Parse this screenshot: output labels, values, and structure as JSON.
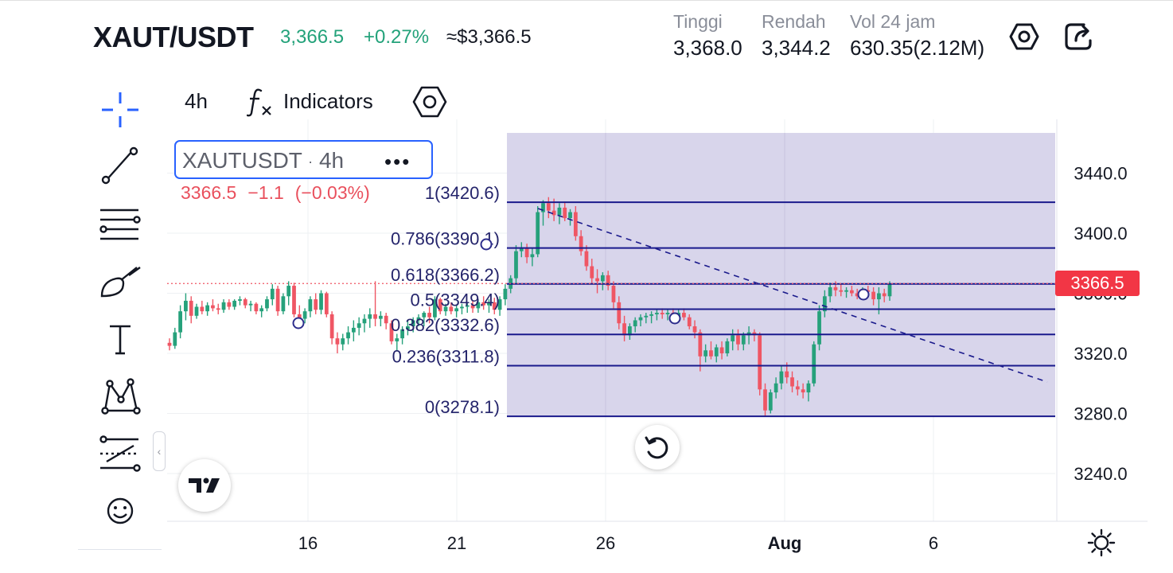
{
  "header": {
    "symbol": "XAUT/USDT",
    "price": "3,366.5",
    "change": "+0.27%",
    "usd_price": "≈$3,366.5",
    "stats": [
      {
        "label": "Tinggi",
        "value": "3,368.0"
      },
      {
        "label": "Rendah",
        "value": "3,344.2"
      },
      {
        "label": "Vol 24 jam",
        "value": "630.35(2.12M)"
      }
    ],
    "settings_icon": "settings-hexagon-icon",
    "share_icon": "share-icon"
  },
  "toolbar": {
    "interval": "4h",
    "indicators_label": "Indicators",
    "indicators_icon": "fx-icon",
    "settings_icon": "hexagon-settings-icon"
  },
  "left_tools": [
    "crosshair-icon",
    "trend-line-icon",
    "fib-lines-icon",
    "brush-icon",
    "text-icon",
    "pattern-icon",
    "measure-icon",
    "emoji-icon"
  ],
  "legend": {
    "name": "XAUTUSDT",
    "sep": "·",
    "interval": "4h",
    "more": "•••",
    "close": "3366.5",
    "change": "−1.1",
    "change_pct": "(−0.03%)"
  },
  "colors": {
    "up": "#26a17b",
    "down": "#ef5664",
    "fib_line": "#1a1a8c",
    "fib_fill": "#d6d3ea",
    "price_tag": "#f23645",
    "accent": "#2962ff"
  },
  "chart_data": {
    "type": "candlestick",
    "symbol": "XAUTUSDT",
    "interval": "4h",
    "x_ticks": [
      "16",
      "21",
      "26",
      "Aug",
      "6"
    ],
    "y_ticks": [
      "3440.0",
      "3400.0",
      "3360.0",
      "3320.0",
      "3280.0",
      "3240.0"
    ],
    "ylim": [
      3226,
      3463
    ],
    "last_price": "3366.5",
    "fib_retracement": [
      {
        "level": "1",
        "price": 3420.6,
        "label": "1(3420.6)"
      },
      {
        "level": "0.786",
        "price": 3390.1,
        "label": "0.786(3390.1)"
      },
      {
        "level": "0.618",
        "price": 3366.2,
        "label": "0.618(3366.2)"
      },
      {
        "level": "0.5",
        "price": 3349.4,
        "label": "0.5(3349.4)"
      },
      {
        "level": "0.382",
        "price": 3332.6,
        "label": "0.382(3332.6)"
      },
      {
        "level": "0.236",
        "price": 3311.8,
        "label": "0.236(3311.8)"
      },
      {
        "level": "0",
        "price": 3278.1,
        "label": "0(3278.1)"
      }
    ],
    "candles": [
      [
        3327,
        3330,
        3322,
        3325
      ],
      [
        3325,
        3337,
        3323,
        3334
      ],
      [
        3334,
        3352,
        3330,
        3348
      ],
      [
        3348,
        3360,
        3342,
        3355
      ],
      [
        3355,
        3358,
        3340,
        3345
      ],
      [
        3345,
        3353,
        3343,
        3351
      ],
      [
        3351,
        3355,
        3346,
        3348
      ],
      [
        3348,
        3354,
        3345,
        3352
      ],
      [
        3352,
        3356,
        3348,
        3350
      ],
      [
        3350,
        3353,
        3346,
        3349
      ],
      [
        3349,
        3356,
        3347,
        3354
      ],
      [
        3354,
        3356,
        3349,
        3351
      ],
      [
        3351,
        3356,
        3349,
        3355
      ],
      [
        3355,
        3358,
        3352,
        3356
      ],
      [
        3356,
        3357,
        3350,
        3352
      ],
      [
        3352,
        3355,
        3348,
        3353
      ],
      [
        3353,
        3354,
        3346,
        3348
      ],
      [
        3348,
        3352,
        3344,
        3350
      ],
      [
        3350,
        3358,
        3348,
        3356
      ],
      [
        3356,
        3366,
        3352,
        3363
      ],
      [
        3363,
        3365,
        3345,
        3348
      ],
      [
        3348,
        3360,
        3346,
        3358
      ],
      [
        3358,
        3368,
        3352,
        3365
      ],
      [
        3365,
        3367,
        3344,
        3346
      ],
      [
        3346,
        3352,
        3340,
        3343
      ],
      [
        3343,
        3350,
        3340,
        3348
      ],
      [
        3348,
        3358,
        3344,
        3356
      ],
      [
        3356,
        3360,
        3346,
        3349
      ],
      [
        3349,
        3362,
        3346,
        3360
      ],
      [
        3360,
        3361,
        3344,
        3346
      ],
      [
        3346,
        3348,
        3326,
        3330
      ],
      [
        3330,
        3334,
        3320,
        3326
      ],
      [
        3326,
        3333,
        3322,
        3330
      ],
      [
        3330,
        3338,
        3326,
        3334
      ],
      [
        3334,
        3342,
        3328,
        3337
      ],
      [
        3337,
        3344,
        3332,
        3340
      ],
      [
        3340,
        3346,
        3334,
        3343
      ],
      [
        3343,
        3350,
        3337,
        3346
      ],
      [
        3346,
        3368,
        3338,
        3343
      ],
      [
        3343,
        3348,
        3338,
        3345
      ],
      [
        3345,
        3347,
        3336,
        3340
      ],
      [
        3340,
        3342,
        3326,
        3328
      ],
      [
        3328,
        3333,
        3322,
        3330
      ],
      [
        3330,
        3338,
        3326,
        3336
      ],
      [
        3336,
        3342,
        3332,
        3338
      ],
      [
        3338,
        3344,
        3334,
        3342
      ],
      [
        3342,
        3346,
        3338,
        3344
      ],
      [
        3344,
        3348,
        3338,
        3347
      ],
      [
        3347,
        3351,
        3340,
        3344
      ],
      [
        3344,
        3358,
        3342,
        3356
      ],
      [
        3356,
        3357,
        3346,
        3348
      ],
      [
        3348,
        3353,
        3345,
        3351
      ],
      [
        3351,
        3354,
        3346,
        3348
      ],
      [
        3348,
        3352,
        3344,
        3350
      ],
      [
        3350,
        3353,
        3346,
        3351
      ],
      [
        3351,
        3354,
        3347,
        3352
      ],
      [
        3352,
        3355,
        3347,
        3350
      ],
      [
        3350,
        3356,
        3347,
        3354
      ],
      [
        3354,
        3358,
        3349,
        3352
      ],
      [
        3352,
        3356,
        3347,
        3354
      ],
      [
        3354,
        3357,
        3346,
        3349
      ],
      [
        3349,
        3358,
        3345,
        3356
      ],
      [
        3356,
        3366,
        3352,
        3363
      ],
      [
        3363,
        3372,
        3360,
        3370
      ],
      [
        3370,
        3392,
        3366,
        3388
      ],
      [
        3388,
        3394,
        3384,
        3390
      ],
      [
        3390,
        3393,
        3380,
        3384
      ],
      [
        3384,
        3390,
        3378,
        3386
      ],
      [
        3386,
        3418,
        3384,
        3414
      ],
      [
        3414,
        3422,
        3405,
        3420
      ],
      [
        3420,
        3424,
        3410,
        3415
      ],
      [
        3415,
        3423,
        3408,
        3412
      ],
      [
        3412,
        3420,
        3406,
        3417
      ],
      [
        3417,
        3421,
        3408,
        3410
      ],
      [
        3410,
        3416,
        3405,
        3414
      ],
      [
        3414,
        3418,
        3395,
        3398
      ],
      [
        3398,
        3402,
        3385,
        3388
      ],
      [
        3388,
        3392,
        3375,
        3378
      ],
      [
        3378,
        3383,
        3366,
        3370
      ],
      [
        3370,
        3376,
        3360,
        3368
      ],
      [
        3368,
        3374,
        3362,
        3372
      ],
      [
        3372,
        3375,
        3362,
        3365
      ],
      [
        3365,
        3368,
        3350,
        3354
      ],
      [
        3354,
        3358,
        3336,
        3340
      ],
      [
        3340,
        3345,
        3328,
        3332
      ],
      [
        3332,
        3340,
        3329,
        3338
      ],
      [
        3338,
        3344,
        3334,
        3342
      ],
      [
        3342,
        3346,
        3338,
        3344
      ],
      [
        3344,
        3347,
        3340,
        3345
      ],
      [
        3345,
        3348,
        3340,
        3346
      ],
      [
        3346,
        3349,
        3342,
        3347
      ],
      [
        3347,
        3350,
        3343,
        3346
      ],
      [
        3346,
        3349,
        3342,
        3347
      ],
      [
        3347,
        3350,
        3342,
        3345
      ],
      [
        3345,
        3349,
        3341,
        3347
      ],
      [
        3347,
        3350,
        3342,
        3344
      ],
      [
        3344,
        3346,
        3336,
        3338
      ],
      [
        3338,
        3342,
        3330,
        3334
      ],
      [
        3334,
        3336,
        3308,
        3318
      ],
      [
        3318,
        3326,
        3314,
        3322
      ],
      [
        3322,
        3328,
        3316,
        3318
      ],
      [
        3318,
        3326,
        3314,
        3324
      ],
      [
        3324,
        3328,
        3316,
        3320
      ],
      [
        3320,
        3330,
        3318,
        3328
      ],
      [
        3328,
        3336,
        3322,
        3332
      ],
      [
        3332,
        3336,
        3322,
        3326
      ],
      [
        3326,
        3334,
        3322,
        3332
      ],
      [
        3332,
        3338,
        3326,
        3334
      ],
      [
        3334,
        3336,
        3328,
        3332
      ],
      [
        3332,
        3334,
        3292,
        3296
      ],
      [
        3296,
        3300,
        3278,
        3282
      ],
      [
        3282,
        3296,
        3280,
        3294
      ],
      [
        3294,
        3304,
        3290,
        3300
      ],
      [
        3300,
        3312,
        3296,
        3308
      ],
      [
        3308,
        3314,
        3300,
        3304
      ],
      [
        3304,
        3308,
        3294,
        3298
      ],
      [
        3298,
        3302,
        3292,
        3296
      ],
      [
        3296,
        3300,
        3290,
        3294
      ],
      [
        3294,
        3302,
        3288,
        3300
      ],
      [
        3300,
        3328,
        3298,
        3326
      ],
      [
        3326,
        3352,
        3322,
        3348
      ],
      [
        3348,
        3362,
        3344,
        3358
      ],
      [
        3358,
        3367,
        3354,
        3364
      ],
      [
        3364,
        3368,
        3358,
        3362
      ],
      [
        3362,
        3366,
        3358,
        3361
      ],
      [
        3361,
        3364,
        3357,
        3362
      ],
      [
        3362,
        3365,
        3358,
        3360
      ],
      [
        3360,
        3363,
        3356,
        3358
      ],
      [
        3358,
        3364,
        3356,
        3362
      ],
      [
        3362,
        3365,
        3358,
        3361
      ],
      [
        3361,
        3364,
        3352,
        3356
      ],
      [
        3356,
        3364,
        3346,
        3360
      ],
      [
        3360,
        3363,
        3354,
        3358
      ],
      [
        3358,
        3368,
        3355,
        3366
      ]
    ]
  }
}
